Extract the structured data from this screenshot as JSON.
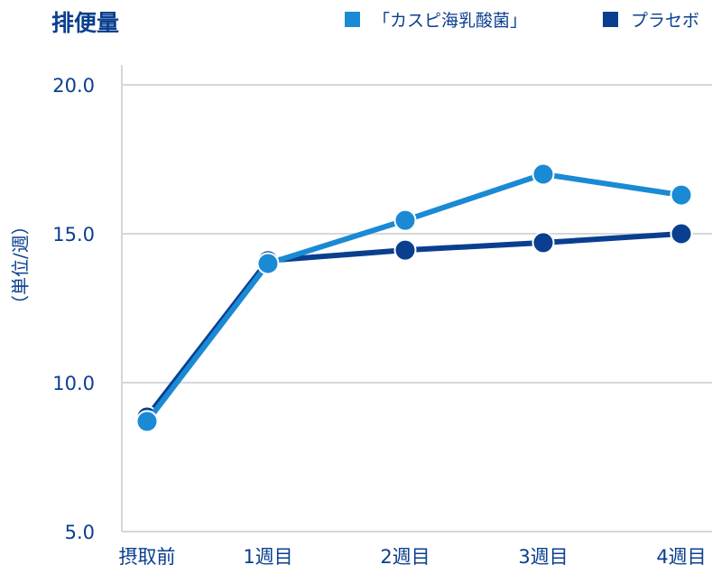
{
  "chart_data": {
    "type": "line",
    "title": "排便量",
    "ylabel": "（単位/週）",
    "categories": [
      "摂取前",
      "1週目",
      "2週目",
      "3週目",
      "4週目"
    ],
    "ylim": [
      5.0,
      20.0
    ],
    "yticks": [
      "5.0",
      "10.0",
      "15.0",
      "20.0"
    ],
    "grid": true,
    "legend_position": "top-right",
    "series": [
      {
        "name": "「カスピ海乳酸菌」",
        "color": "#1a8ad4",
        "values": [
          8.7,
          14.0,
          15.45,
          17.0,
          16.3
        ]
      },
      {
        "name": "プラセボ",
        "color": "#0a3f8f",
        "values": [
          8.85,
          14.1,
          14.45,
          14.7,
          15.0
        ]
      }
    ]
  }
}
